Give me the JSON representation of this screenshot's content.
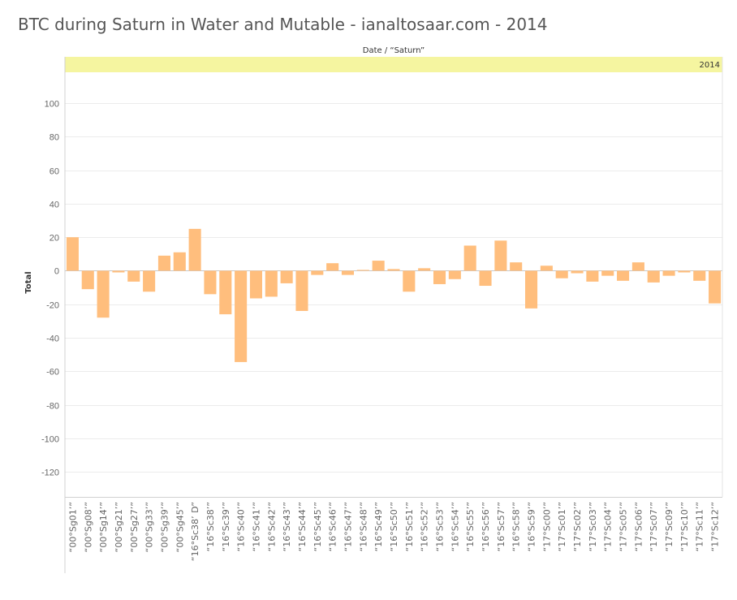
{
  "title": "BTC during Saturn in Water and Mutable - ianaltosaar.com - 2014",
  "colors": {
    "bar": "#ffbe7d",
    "header_band": "#f5f5a0",
    "grid": "#ececec",
    "zero_line": "#c8c8c8"
  },
  "chart_data": {
    "type": "bar",
    "header_title": "Date / “Saturn”",
    "header_value": "2014",
    "xlabel": "",
    "ylabel": "Total",
    "ylim": [
      -135,
      118
    ],
    "yticks": [
      100,
      80,
      60,
      40,
      20,
      0,
      -20,
      -40,
      -60,
      -80,
      -100,
      -120
    ],
    "grid": true,
    "categories": [
      "“00°Sg01’”",
      "“00°Sg08’”",
      "“00°Sg14’”",
      "“00°Sg21’”",
      "“00°Sg27’”",
      "“00°Sg33’”",
      "“00°Sg39’”",
      "“00°Sg45’”",
      "“16°Sc38’ D”",
      "“16°Sc38’”",
      "“16°Sc39’”",
      "“16°Sc40’”",
      "“16°Sc41’”",
      "“16°Sc42’”",
      "“16°Sc43’”",
      "“16°Sc44’”",
      "“16°Sc45’”",
      "“16°Sc46’”",
      "“16°Sc47’”",
      "“16°Sc48’”",
      "“16°Sc49’”",
      "“16°Sc50’”",
      "“16°Sc51’”",
      "“16°Sc52’”",
      "“16°Sc53’”",
      "“16°Sc54’”",
      "“16°Sc55’”",
      "“16°Sc56’”",
      "“16°Sc57’”",
      "“16°Sc58’”",
      "“16°Sc59’”",
      "“17°Sc00’”",
      "“17°Sc01’”",
      "“17°Sc02’”",
      "“17°Sc03’”",
      "“17°Sc04’”",
      "“17°Sc05’”",
      "“17°Sc06’”",
      "“17°Sc07’”",
      "“17°Sc09’”",
      "“17°Sc10’”",
      "“17°Sc11’”",
      "“17°Sc12’”"
    ],
    "values": [
      20,
      -11,
      -28,
      -1,
      -6.5,
      -12.5,
      9,
      11,
      25,
      -14,
      -26,
      -54.5,
      -16.5,
      -15.5,
      -7.5,
      -24,
      -2.5,
      4.5,
      -2.5,
      0.5,
      6,
      1,
      -12.5,
      1.5,
      -8,
      -5,
      15,
      -9,
      18,
      5,
      -22.5,
      3,
      -4.5,
      -1.5,
      -6.5,
      -3,
      -6,
      5,
      -7,
      -3,
      -1,
      -6,
      -19.5
    ]
  }
}
